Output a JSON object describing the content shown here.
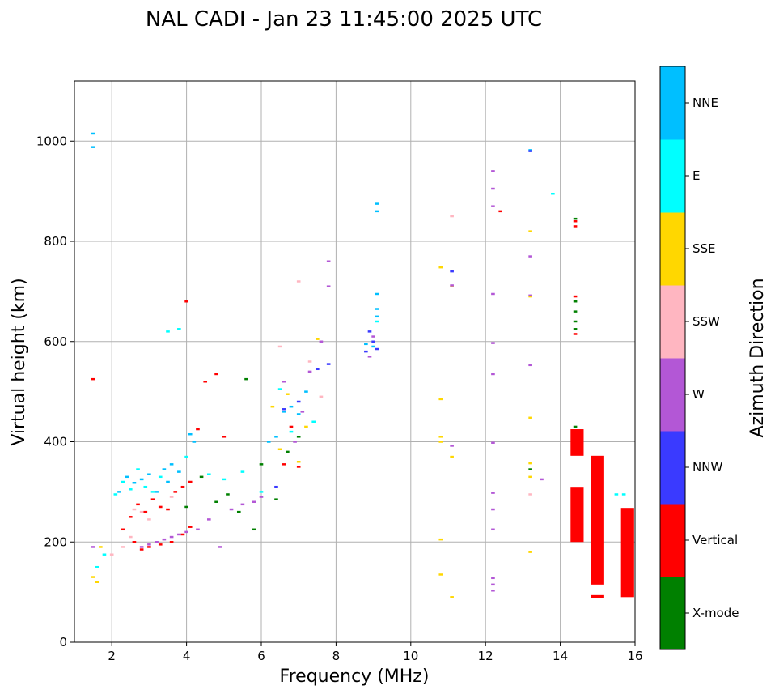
{
  "chart_data": {
    "type": "scatter",
    "title": "NAL CADI - Jan 23 11:45:00 2025 UTC",
    "xlabel": "Frequency (MHz)",
    "ylabel": "Virtual height (km)",
    "xlim": [
      1,
      16
    ],
    "ylim": [
      0,
      1120
    ],
    "xticks": [
      2,
      4,
      6,
      8,
      10,
      12,
      14,
      16
    ],
    "yticks": [
      0,
      200,
      400,
      600,
      800,
      1000
    ],
    "grid": true,
    "colorbar": {
      "label": "Azimuth Direction",
      "categories": [
        {
          "name": "X-mode",
          "color": "#008000"
        },
        {
          "name": "Vertical",
          "color": "#ff0000"
        },
        {
          "name": "NNW",
          "color": "#3a3aff"
        },
        {
          "name": "W",
          "color": "#b357d6"
        },
        {
          "name": "SSW",
          "color": "#ffb6c1"
        },
        {
          "name": "SSE",
          "color": "#ffd700"
        },
        {
          "name": "E",
          "color": "#00ffff"
        },
        {
          "name": "NNE",
          "color": "#00bfff"
        }
      ]
    },
    "series": [
      {
        "name": "NNE",
        "points": [
          [
            1.5,
            1015
          ],
          [
            1.5,
            988
          ],
          [
            2.2,
            300
          ],
          [
            2.4,
            330
          ],
          [
            2.6,
            318
          ],
          [
            2.8,
            325
          ],
          [
            3.0,
            335
          ],
          [
            3.2,
            300
          ],
          [
            3.4,
            345
          ],
          [
            3.5,
            320
          ],
          [
            3.6,
            355
          ],
          [
            3.8,
            340
          ],
          [
            4.1,
            415
          ],
          [
            4.2,
            400
          ],
          [
            6.2,
            400
          ],
          [
            6.4,
            410
          ],
          [
            6.6,
            460
          ],
          [
            6.8,
            470
          ],
          [
            7.0,
            455
          ],
          [
            7.2,
            500
          ],
          [
            8.8,
            595
          ],
          [
            9.0,
            590
          ],
          [
            9.1,
            695
          ],
          [
            9.1,
            665
          ],
          [
            9.1,
            650
          ],
          [
            9.1,
            875
          ],
          [
            9.1,
            860
          ],
          [
            13.2,
            982
          ]
        ]
      },
      {
        "name": "E",
        "points": [
          [
            1.6,
            150
          ],
          [
            1.8,
            175
          ],
          [
            2.1,
            295
          ],
          [
            2.3,
            320
          ],
          [
            2.5,
            305
          ],
          [
            2.7,
            345
          ],
          [
            2.9,
            310
          ],
          [
            3.1,
            300
          ],
          [
            3.3,
            330
          ],
          [
            3.5,
            620
          ],
          [
            3.8,
            625
          ],
          [
            4.0,
            370
          ],
          [
            4.6,
            335
          ],
          [
            5.0,
            325
          ],
          [
            5.5,
            340
          ],
          [
            6.0,
            300
          ],
          [
            6.5,
            505
          ],
          [
            6.8,
            420
          ],
          [
            7.4,
            440
          ],
          [
            9.1,
            640
          ],
          [
            13.8,
            895
          ],
          [
            15.5,
            295
          ],
          [
            15.7,
            295
          ]
        ]
      },
      {
        "name": "SSE",
        "points": [
          [
            1.5,
            130
          ],
          [
            1.6,
            120
          ],
          [
            1.7,
            190
          ],
          [
            6.3,
            470
          ],
          [
            6.5,
            385
          ],
          [
            6.7,
            495
          ],
          [
            7.0,
            360
          ],
          [
            7.2,
            430
          ],
          [
            7.5,
            605
          ],
          [
            10.8,
            748
          ],
          [
            10.8,
            485
          ],
          [
            10.8,
            410
          ],
          [
            10.8,
            400
          ],
          [
            10.8,
            205
          ],
          [
            10.8,
            135
          ],
          [
            11.1,
            710
          ],
          [
            11.1,
            370
          ],
          [
            11.1,
            90
          ],
          [
            13.2,
            820
          ],
          [
            13.2,
            690
          ],
          [
            13.2,
            448
          ],
          [
            13.2,
            357
          ],
          [
            13.2,
            330
          ],
          [
            13.2,
            180
          ]
        ]
      },
      {
        "name": "SSW",
        "points": [
          [
            2.0,
            175
          ],
          [
            2.3,
            190
          ],
          [
            2.5,
            210
          ],
          [
            2.6,
            265
          ],
          [
            2.8,
            260
          ],
          [
            3.0,
            245
          ],
          [
            3.3,
            270
          ],
          [
            3.6,
            290
          ],
          [
            6.5,
            590
          ],
          [
            7.0,
            720
          ],
          [
            7.3,
            560
          ],
          [
            7.6,
            490
          ],
          [
            11.1,
            850
          ],
          [
            13.2,
            295
          ]
        ]
      },
      {
        "name": "W",
        "points": [
          [
            1.5,
            190
          ],
          [
            2.8,
            190
          ],
          [
            3.0,
            195
          ],
          [
            3.2,
            200
          ],
          [
            3.4,
            205
          ],
          [
            3.6,
            210
          ],
          [
            3.8,
            215
          ],
          [
            4.0,
            220
          ],
          [
            4.3,
            225
          ],
          [
            4.6,
            245
          ],
          [
            4.9,
            190
          ],
          [
            5.2,
            265
          ],
          [
            5.5,
            275
          ],
          [
            5.8,
            280
          ],
          [
            6.0,
            290
          ],
          [
            6.6,
            520
          ],
          [
            6.9,
            400
          ],
          [
            7.1,
            460
          ],
          [
            7.3,
            540
          ],
          [
            7.6,
            600
          ],
          [
            7.8,
            710
          ],
          [
            7.8,
            760
          ],
          [
            8.9,
            570
          ],
          [
            9.0,
            610
          ],
          [
            11.1,
            712
          ],
          [
            11.1,
            392
          ],
          [
            12.2,
            940
          ],
          [
            12.2,
            905
          ],
          [
            12.2,
            870
          ],
          [
            12.2,
            695
          ],
          [
            12.2,
            597
          ],
          [
            12.2,
            535
          ],
          [
            12.2,
            398
          ],
          [
            12.2,
            298
          ],
          [
            12.2,
            265
          ],
          [
            12.2,
            225
          ],
          [
            12.2,
            128
          ],
          [
            12.2,
            115
          ],
          [
            12.2,
            103
          ],
          [
            13.2,
            770
          ],
          [
            13.2,
            692
          ],
          [
            13.2,
            553
          ],
          [
            13.5,
            325
          ]
        ]
      },
      {
        "name": "NNW",
        "points": [
          [
            6.4,
            310
          ],
          [
            6.6,
            465
          ],
          [
            7.0,
            480
          ],
          [
            7.5,
            545
          ],
          [
            7.8,
            555
          ],
          [
            8.8,
            580
          ],
          [
            8.9,
            620
          ],
          [
            9.0,
            600
          ],
          [
            9.1,
            585
          ],
          [
            11.1,
            740
          ],
          [
            13.2,
            980
          ]
        ]
      },
      {
        "name": "Vertical",
        "points": [
          [
            1.5,
            525
          ],
          [
            2.3,
            225
          ],
          [
            2.5,
            250
          ],
          [
            2.7,
            275
          ],
          [
            2.9,
            260
          ],
          [
            3.1,
            285
          ],
          [
            3.3,
            270
          ],
          [
            3.5,
            265
          ],
          [
            3.7,
            300
          ],
          [
            3.9,
            310
          ],
          [
            4.0,
            680
          ],
          [
            4.1,
            320
          ],
          [
            4.3,
            425
          ],
          [
            4.5,
            520
          ],
          [
            4.8,
            535
          ],
          [
            5.0,
            410
          ],
          [
            2.6,
            200
          ],
          [
            2.8,
            185
          ],
          [
            3.0,
            190
          ],
          [
            3.3,
            195
          ],
          [
            3.6,
            200
          ],
          [
            3.9,
            215
          ],
          [
            4.1,
            230
          ],
          [
            6.6,
            355
          ],
          [
            6.8,
            430
          ],
          [
            7.0,
            350
          ],
          [
            12.4,
            860
          ],
          [
            14.4,
            840
          ],
          [
            14.4,
            830
          ],
          [
            14.4,
            690
          ],
          [
            14.4,
            615
          ]
        ]
      },
      {
        "name": "X-mode",
        "points": [
          [
            4.0,
            270
          ],
          [
            4.4,
            330
          ],
          [
            4.8,
            280
          ],
          [
            5.1,
            295
          ],
          [
            5.4,
            260
          ],
          [
            5.6,
            525
          ],
          [
            5.8,
            225
          ],
          [
            6.0,
            355
          ],
          [
            6.4,
            285
          ],
          [
            6.7,
            380
          ],
          [
            7.0,
            410
          ],
          [
            13.2,
            345
          ],
          [
            14.4,
            845
          ],
          [
            14.4,
            680
          ],
          [
            14.4,
            660
          ],
          [
            14.4,
            640
          ],
          [
            14.4,
            625
          ],
          [
            14.4,
            430
          ],
          [
            14.4,
            410
          ]
        ]
      }
    ],
    "bars": [
      {
        "name": "Vertical",
        "x": 14.45,
        "y_from": 200,
        "y_to": 310
      },
      {
        "name": "Vertical",
        "x": 14.45,
        "y_from": 372,
        "y_to": 425
      },
      {
        "name": "Vertical",
        "x": 15.0,
        "y_from": 115,
        "y_to": 372
      },
      {
        "name": "Vertical",
        "x": 15.0,
        "y_from": 88,
        "y_to": 94
      },
      {
        "name": "Vertical",
        "x": 15.8,
        "y_from": 90,
        "y_to": 268
      }
    ]
  }
}
